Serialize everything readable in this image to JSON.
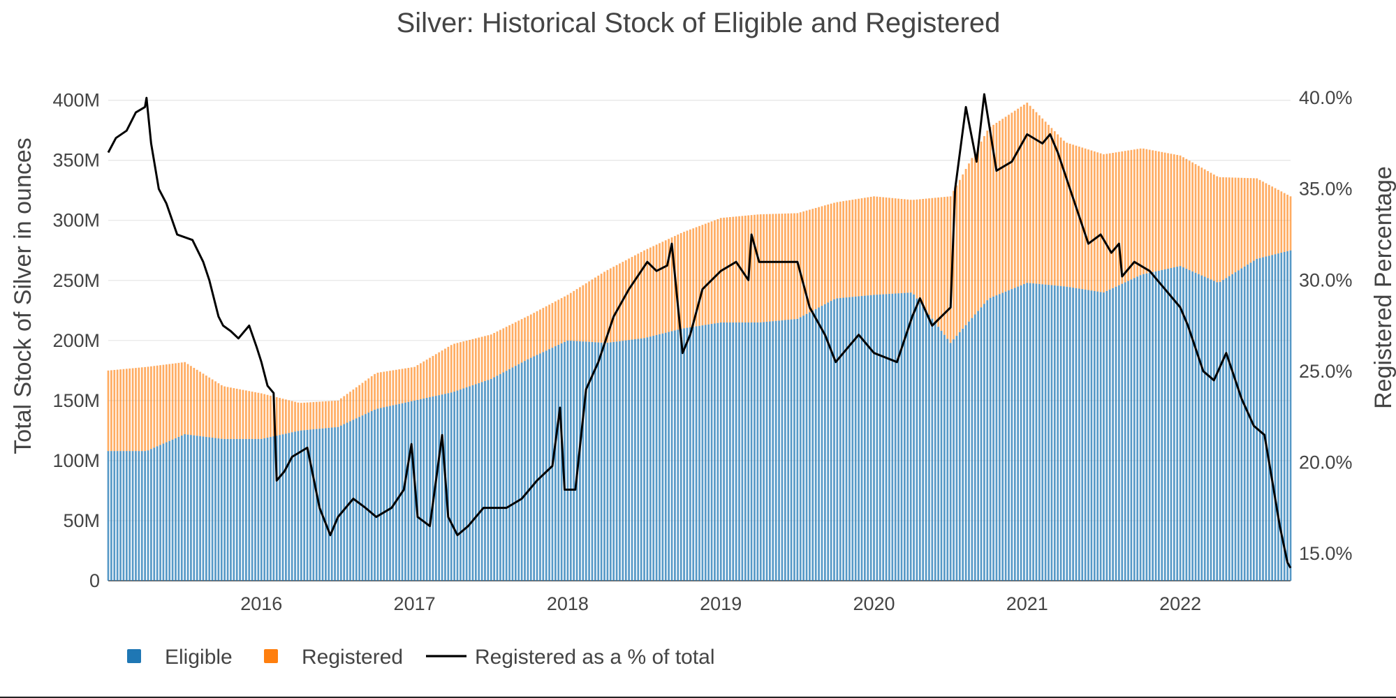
{
  "chart_data": {
    "type": "bar",
    "stacked": true,
    "title": "Silver: Historical Stock of Eligible and Registered",
    "y_left_label": "Total Stock of Silver in ounces",
    "y_right_label": "Registered Percentage",
    "y_left_ticks": [
      "0",
      "50M",
      "100M",
      "150M",
      "200M",
      "250M",
      "300M",
      "350M",
      "400M"
    ],
    "y_left_tick_values": [
      0,
      50,
      100,
      150,
      200,
      250,
      300,
      350,
      400
    ],
    "y_left_unit": "millions of ounces",
    "y_left_range": [
      0,
      405
    ],
    "y_right_ticks": [
      "15.0%",
      "20.0%",
      "25.0%",
      "30.0%",
      "35.0%",
      "40.0%"
    ],
    "y_right_tick_values": [
      15,
      20,
      25,
      30,
      35,
      40
    ],
    "y_right_range": [
      13.5,
      40.2
    ],
    "x_ticks": [
      "2016",
      "2017",
      "2018",
      "2019",
      "2020",
      "2021",
      "2022"
    ],
    "x_tick_values": [
      2016,
      2017,
      2018,
      2019,
      2020,
      2021,
      2022
    ],
    "x_range": [
      2015.0,
      2022.72
    ],
    "grid": true,
    "legend_position": "bottom-left",
    "colors": {
      "eligible": "#1f77b4",
      "registered": "#ff7f0e",
      "line": "#000000"
    },
    "series": [
      {
        "name": "Eligible",
        "kind": "bar",
        "x": [
          2015.0,
          2015.25,
          2015.5,
          2015.75,
          2016.0,
          2016.25,
          2016.5,
          2016.75,
          2017.0,
          2017.25,
          2017.5,
          2017.75,
          2018.0,
          2018.25,
          2018.5,
          2018.75,
          2019.0,
          2019.25,
          2019.5,
          2019.75,
          2020.0,
          2020.25,
          2020.5,
          2020.75,
          2021.0,
          2021.25,
          2021.5,
          2021.75,
          2022.0,
          2022.25,
          2022.5,
          2022.72
        ],
        "values": [
          108,
          108,
          122,
          118,
          118,
          125,
          128,
          143,
          150,
          157,
          168,
          185,
          200,
          198,
          202,
          210,
          215,
          215,
          218,
          235,
          238,
          240,
          198,
          235,
          248,
          245,
          240,
          255,
          262,
          248,
          268,
          275
        ]
      },
      {
        "name": "Registered",
        "kind": "bar",
        "x": [
          2015.0,
          2015.25,
          2015.5,
          2015.75,
          2016.0,
          2016.25,
          2016.5,
          2016.75,
          2017.0,
          2017.25,
          2017.5,
          2017.75,
          2018.0,
          2018.25,
          2018.5,
          2018.75,
          2019.0,
          2019.25,
          2019.5,
          2019.75,
          2020.0,
          2020.25,
          2020.5,
          2020.75,
          2021.0,
          2021.25,
          2021.5,
          2021.75,
          2022.0,
          2022.25,
          2022.5,
          2022.72
        ],
        "values": [
          67,
          70,
          60,
          44,
          38,
          23,
          22,
          30,
          28,
          40,
          37,
          36,
          38,
          60,
          73,
          80,
          87,
          90,
          88,
          80,
          82,
          77,
          122,
          142,
          150,
          120,
          115,
          105,
          92,
          88,
          67,
          45
        ]
      },
      {
        "name": "Registered as a % of total",
        "kind": "line",
        "axis": "right",
        "x": [
          2015.0,
          2015.05,
          2015.12,
          2015.18,
          2015.24,
          2015.25,
          2015.28,
          2015.33,
          2015.38,
          2015.45,
          2015.55,
          2015.62,
          2015.66,
          2015.72,
          2015.75,
          2015.8,
          2015.85,
          2015.92,
          2015.97,
          2016.0,
          2016.04,
          2016.08,
          2016.1,
          2016.15,
          2016.2,
          2016.3,
          2016.38,
          2016.45,
          2016.5,
          2016.6,
          2016.68,
          2016.75,
          2016.85,
          2016.93,
          2016.98,
          2017.02,
          2017.1,
          2017.18,
          2017.22,
          2017.28,
          2017.35,
          2017.45,
          2017.6,
          2017.7,
          2017.8,
          2017.9,
          2017.95,
          2017.98,
          2018.05,
          2018.12,
          2018.2,
          2018.3,
          2018.4,
          2018.48,
          2018.52,
          2018.58,
          2018.65,
          2018.68,
          2018.75,
          2018.8,
          2018.88,
          2019.0,
          2019.1,
          2019.18,
          2019.2,
          2019.25,
          2019.35,
          2019.5,
          2019.58,
          2019.68,
          2019.75,
          2019.8,
          2019.9,
          2020.0,
          2020.15,
          2020.25,
          2020.3,
          2020.38,
          2020.5,
          2020.53,
          2020.6,
          2020.67,
          2020.72,
          2020.8,
          2020.9,
          2021.0,
          2021.1,
          2021.15,
          2021.2,
          2021.3,
          2021.4,
          2021.48,
          2021.55,
          2021.6,
          2021.62,
          2021.7,
          2021.8,
          2021.9,
          2022.0,
          2022.05,
          2022.15,
          2022.22,
          2022.3,
          2022.4,
          2022.48,
          2022.55,
          2022.6,
          2022.65,
          2022.7,
          2022.72
        ],
        "values": [
          37,
          37.8,
          38.2,
          39.2,
          39.5,
          40,
          37.5,
          35,
          34.2,
          32.5,
          32.2,
          31,
          30,
          28,
          27.5,
          27.2,
          26.8,
          27.5,
          26.3,
          25.5,
          24.2,
          23.8,
          19,
          19.5,
          20.3,
          20.8,
          17.5,
          16,
          17,
          18,
          17.5,
          17,
          17.5,
          18.5,
          21,
          17,
          16.5,
          21.5,
          17,
          16,
          16.5,
          17.5,
          17.5,
          18,
          19,
          19.8,
          23,
          18.5,
          18.5,
          24,
          25.5,
          28,
          29.5,
          30.5,
          31,
          30.5,
          30.8,
          32,
          26,
          27,
          29.5,
          30.5,
          31,
          30,
          32.5,
          31,
          31,
          31,
          28.5,
          27,
          25.5,
          26,
          27,
          26,
          25.5,
          28,
          29,
          27.5,
          28.5,
          35,
          39.5,
          36.5,
          40.2,
          36,
          36.5,
          38,
          37.5,
          38,
          37,
          34.5,
          32,
          32.5,
          31.5,
          32,
          30.2,
          31,
          30.5,
          29.5,
          28.5,
          27.5,
          25,
          24.5,
          26,
          23.5,
          22,
          21.5,
          19,
          16.5,
          14.5,
          14.2
        ]
      }
    ]
  },
  "legend": {
    "items": [
      {
        "label": "Eligible",
        "color": "#1f77b4",
        "symbol": "square"
      },
      {
        "label": "Registered",
        "color": "#ff7f0e",
        "symbol": "square"
      },
      {
        "label": "Registered as a % of total",
        "color": "#000000",
        "symbol": "line"
      }
    ]
  }
}
